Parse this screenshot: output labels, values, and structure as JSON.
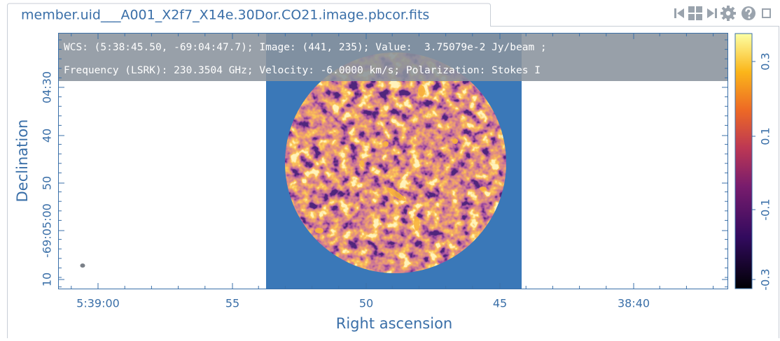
{
  "tab": {
    "title": "member.uid___A001_X2f7_X14e.30Dor.CO21.image.pbcor.fits"
  },
  "info": {
    "line1": "WCS: (5:38:45.50, -69:04:47.7); Image: (441, 235); Value:  3.75079e-2 Jy/beam ;",
    "line2": "Frequency (LSRK): 230.3504 GHz; Velocity: -6.0000 km/s; Polarization: Stokes I"
  },
  "axes": {
    "x_label": "Right ascension",
    "y_label": "Declination",
    "x_ticks": [
      "5:39:00",
      "55",
      "50",
      "45",
      "38:40"
    ],
    "y_ticks": [
      "04:30",
      "40",
      "50",
      "-69:05:00",
      "10"
    ]
  },
  "colorbar": {
    "ticks": [
      "0.3",
      "0.1",
      "-0.1",
      "-0.3"
    ]
  }
}
